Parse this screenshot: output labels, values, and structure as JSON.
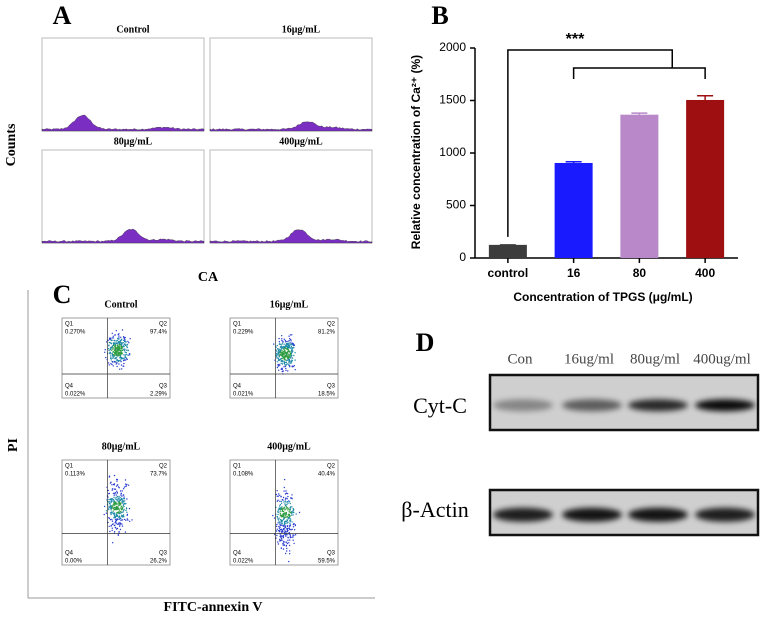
{
  "chart_data": {
    "type": "bar",
    "panel_label": "B",
    "categories": [
      "control",
      "16",
      "80",
      "400"
    ],
    "values": [
      125,
      905,
      1365,
      1505
    ],
    "errors": [
      0,
      12,
      15,
      40
    ],
    "colors": [
      "#3c3c3c",
      "#1a1aff",
      "#b888c8",
      "#9e0f12"
    ],
    "ylim": [
      0,
      2000
    ],
    "yticks": [
      0,
      500,
      1000,
      1500,
      2000
    ],
    "y_label": "Relative concentration of Ca²⁺ (%)",
    "x_label": "Concentration of TPGS (μg/mL)",
    "annotation": "***"
  },
  "panel_a": {
    "label": "A",
    "y_label": "Counts",
    "x_label": "CA",
    "plots": [
      {
        "title": "Control"
      },
      {
        "title": "16μg/mL"
      },
      {
        "title": "80μg/mL"
      },
      {
        "title": "400μg/mL"
      }
    ]
  },
  "panel_c": {
    "label": "C",
    "y_label": "PI",
    "x_label": "FITC-annexin V",
    "quadrant_names": [
      "Q1",
      "Q2",
      "Q3",
      "Q4"
    ],
    "plots": [
      {
        "title": "Control",
        "quadrants": [
          "0.270%",
          "97.4%",
          "2.29%",
          "0.022%"
        ]
      },
      {
        "title": "16μg/mL",
        "quadrants": [
          "0.229%",
          "81.2%",
          "18.5%",
          "0.021%"
        ]
      },
      {
        "title": "80μg/mL",
        "quadrants": [
          "0.113%",
          "73.7%",
          "26.2%",
          "0.00%"
        ]
      },
      {
        "title": "400μg/mL",
        "quadrants": [
          "0.108%",
          "40.4%",
          "59.5%",
          "0.022%"
        ]
      }
    ]
  },
  "panel_d": {
    "label": "D",
    "lanes": [
      "Con",
      "16ug/ml",
      "80ug/ml",
      "400ug/ml"
    ],
    "rows": [
      "Cyt-C",
      "β-Actin"
    ]
  }
}
